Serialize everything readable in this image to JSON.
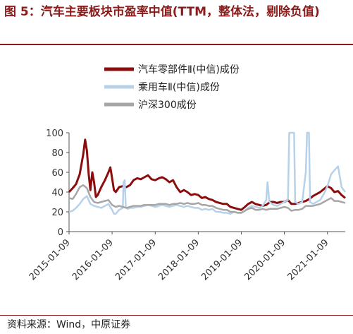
{
  "title": "图 5：汽车主要板块市盈率中值(TTM，整体法，剔除负值)",
  "source": "资料来源：Wind，中原证券",
  "chart_data": {
    "type": "line",
    "ylim": [
      0,
      100
    ],
    "yticks": [
      0,
      20,
      40,
      60,
      80,
      100
    ],
    "xlim": [
      "2015-01-09",
      "2021-06-09"
    ],
    "xticks": [
      "2015-01-09",
      "2016-01-09",
      "2017-01-09",
      "2018-01-09",
      "2019-01-09",
      "2020-01-09",
      "2021-01-09"
    ],
    "legend_position": "top-right",
    "grid": false,
    "series": [
      {
        "name": "汽车零部件Ⅱ(中信)成份",
        "color": "#8B0D0D",
        "points": [
          [
            "2015-01-09",
            40
          ],
          [
            "2015-02-09",
            44
          ],
          [
            "2015-03-09",
            48
          ],
          [
            "2015-04-09",
            58
          ],
          [
            "2015-05-09",
            78
          ],
          [
            "2015-05-25",
            93
          ],
          [
            "2015-06-09",
            82
          ],
          [
            "2015-06-25",
            58
          ],
          [
            "2015-07-09",
            42
          ],
          [
            "2015-07-25",
            60
          ],
          [
            "2015-08-09",
            50
          ],
          [
            "2015-08-25",
            35
          ],
          [
            "2015-09-09",
            37
          ],
          [
            "2015-10-09",
            45
          ],
          [
            "2015-11-09",
            52
          ],
          [
            "2015-12-09",
            60
          ],
          [
            "2015-12-25",
            65
          ],
          [
            "2016-01-09",
            54
          ],
          [
            "2016-01-25",
            42
          ],
          [
            "2016-02-09",
            40
          ],
          [
            "2016-03-09",
            45
          ],
          [
            "2016-04-09",
            46
          ],
          [
            "2016-05-09",
            45
          ],
          [
            "2016-06-09",
            47
          ],
          [
            "2016-07-09",
            52
          ],
          [
            "2016-08-09",
            54
          ],
          [
            "2016-09-09",
            53
          ],
          [
            "2016-10-09",
            55
          ],
          [
            "2016-11-09",
            57
          ],
          [
            "2016-12-09",
            53
          ],
          [
            "2017-01-09",
            52
          ],
          [
            "2017-02-09",
            54
          ],
          [
            "2017-03-09",
            55
          ],
          [
            "2017-04-09",
            53
          ],
          [
            "2017-05-09",
            50
          ],
          [
            "2017-06-09",
            52
          ],
          [
            "2017-07-09",
            45
          ],
          [
            "2017-08-09",
            40
          ],
          [
            "2017-09-09",
            42
          ],
          [
            "2017-10-09",
            40
          ],
          [
            "2017-11-09",
            37
          ],
          [
            "2017-12-09",
            38
          ],
          [
            "2018-01-09",
            37
          ],
          [
            "2018-02-09",
            34
          ],
          [
            "2018-03-09",
            35
          ],
          [
            "2018-04-09",
            33
          ],
          [
            "2018-05-09",
            32
          ],
          [
            "2018-06-09",
            30
          ],
          [
            "2018-07-09",
            29
          ],
          [
            "2018-08-09",
            28
          ],
          [
            "2018-09-09",
            28
          ],
          [
            "2018-10-09",
            25
          ],
          [
            "2018-11-09",
            24
          ],
          [
            "2018-12-09",
            23
          ],
          [
            "2019-01-09",
            22
          ],
          [
            "2019-02-09",
            25
          ],
          [
            "2019-03-09",
            28
          ],
          [
            "2019-04-09",
            30
          ],
          [
            "2019-05-09",
            28
          ],
          [
            "2019-06-09",
            27
          ],
          [
            "2019-07-09",
            26
          ],
          [
            "2019-08-09",
            27
          ],
          [
            "2019-09-09",
            30
          ],
          [
            "2019-10-09",
            30
          ],
          [
            "2019-11-09",
            29
          ],
          [
            "2019-12-09",
            30
          ],
          [
            "2020-01-09",
            30
          ],
          [
            "2020-02-09",
            32
          ],
          [
            "2020-03-09",
            28
          ],
          [
            "2020-04-09",
            28
          ],
          [
            "2020-05-09",
            29
          ],
          [
            "2020-06-09",
            30
          ],
          [
            "2020-07-09",
            31
          ],
          [
            "2020-08-09",
            33
          ],
          [
            "2020-09-09",
            36
          ],
          [
            "2020-10-09",
            38
          ],
          [
            "2020-11-09",
            40
          ],
          [
            "2020-12-09",
            43
          ],
          [
            "2021-01-09",
            46
          ],
          [
            "2021-02-09",
            44
          ],
          [
            "2021-03-09",
            40
          ],
          [
            "2021-04-09",
            41
          ],
          [
            "2021-05-09",
            37
          ],
          [
            "2021-06-09",
            34
          ]
        ]
      },
      {
        "name": "乘用车Ⅱ(中信)成份",
        "color": "#B7D2E8",
        "points": [
          [
            "2015-01-09",
            20
          ],
          [
            "2015-02-09",
            21
          ],
          [
            "2015-03-09",
            24
          ],
          [
            "2015-04-09",
            28
          ],
          [
            "2015-05-09",
            33
          ],
          [
            "2015-06-09",
            36
          ],
          [
            "2015-07-09",
            28
          ],
          [
            "2015-08-09",
            26
          ],
          [
            "2015-09-09",
            25
          ],
          [
            "2015-10-09",
            24
          ],
          [
            "2015-11-09",
            26
          ],
          [
            "2015-12-09",
            28
          ],
          [
            "2016-01-09",
            22
          ],
          [
            "2016-01-25",
            18
          ],
          [
            "2016-02-09",
            18
          ],
          [
            "2016-03-09",
            22
          ],
          [
            "2016-04-09",
            24
          ],
          [
            "2016-04-15",
            50
          ],
          [
            "2016-04-25",
            52
          ],
          [
            "2016-05-05",
            25
          ],
          [
            "2016-05-20",
            23
          ],
          [
            "2016-06-09",
            24
          ],
          [
            "2016-07-09",
            24
          ],
          [
            "2016-08-09",
            25
          ],
          [
            "2016-09-09",
            25
          ],
          [
            "2016-10-09",
            26
          ],
          [
            "2016-11-09",
            27
          ],
          [
            "2016-12-09",
            26
          ],
          [
            "2017-01-09",
            25
          ],
          [
            "2017-02-09",
            26
          ],
          [
            "2017-03-09",
            27
          ],
          [
            "2017-04-09",
            26
          ],
          [
            "2017-05-09",
            25
          ],
          [
            "2017-06-09",
            26
          ],
          [
            "2017-07-09",
            27
          ],
          [
            "2017-08-09",
            26
          ],
          [
            "2017-09-09",
            25
          ],
          [
            "2017-10-09",
            26
          ],
          [
            "2017-11-09",
            25
          ],
          [
            "2017-12-09",
            24
          ],
          [
            "2018-01-09",
            24
          ],
          [
            "2018-02-09",
            22
          ],
          [
            "2018-03-09",
            23
          ],
          [
            "2018-04-09",
            22
          ],
          [
            "2018-05-09",
            23
          ],
          [
            "2018-06-09",
            20
          ],
          [
            "2018-07-09",
            20
          ],
          [
            "2018-08-09",
            19
          ],
          [
            "2018-09-09",
            19
          ],
          [
            "2018-10-09",
            18
          ],
          [
            "2018-11-09",
            20
          ],
          [
            "2018-12-09",
            19
          ],
          [
            "2019-01-09",
            19
          ],
          [
            "2019-02-09",
            21
          ],
          [
            "2019-03-09",
            24
          ],
          [
            "2019-04-09",
            26
          ],
          [
            "2019-05-09",
            25
          ],
          [
            "2019-06-09",
            24
          ],
          [
            "2019-07-09",
            26
          ],
          [
            "2019-08-09",
            32
          ],
          [
            "2019-08-20",
            50
          ],
          [
            "2019-09-05",
            30
          ],
          [
            "2019-10-09",
            27
          ],
          [
            "2019-11-09",
            26
          ],
          [
            "2019-12-09",
            28
          ],
          [
            "2020-01-09",
            30
          ],
          [
            "2020-02-09",
            32
          ],
          [
            "2020-02-20",
            100
          ],
          [
            "2020-03-01",
            100
          ],
          [
            "2020-03-09",
            100
          ],
          [
            "2020-03-20",
            100
          ],
          [
            "2020-04-01",
            100
          ],
          [
            "2020-04-10",
            30
          ],
          [
            "2020-05-09",
            28
          ],
          [
            "2020-06-09",
            30
          ],
          [
            "2020-07-09",
            60
          ],
          [
            "2020-07-20",
            100
          ],
          [
            "2020-08-05",
            100
          ],
          [
            "2020-08-15",
            30
          ],
          [
            "2020-09-09",
            28
          ],
          [
            "2020-10-09",
            30
          ],
          [
            "2020-11-09",
            32
          ],
          [
            "2020-12-09",
            38
          ],
          [
            "2021-01-09",
            46
          ],
          [
            "2021-02-09",
            58
          ],
          [
            "2021-03-09",
            62
          ],
          [
            "2021-04-09",
            66
          ],
          [
            "2021-05-09",
            45
          ],
          [
            "2021-06-09",
            40
          ]
        ]
      },
      {
        "name": "沪深300成份",
        "color": "#A6A6A6",
        "points": [
          [
            "2015-01-09",
            34
          ],
          [
            "2015-02-09",
            33
          ],
          [
            "2015-03-09",
            38
          ],
          [
            "2015-04-09",
            45
          ],
          [
            "2015-05-09",
            47
          ],
          [
            "2015-06-09",
            44
          ],
          [
            "2015-07-09",
            35
          ],
          [
            "2015-08-09",
            30
          ],
          [
            "2015-09-09",
            29
          ],
          [
            "2015-10-09",
            30
          ],
          [
            "2015-11-09",
            31
          ],
          [
            "2015-12-09",
            32
          ],
          [
            "2016-01-09",
            27
          ],
          [
            "2016-02-09",
            25
          ],
          [
            "2016-03-09",
            26
          ],
          [
            "2016-04-09",
            25
          ],
          [
            "2016-05-09",
            24
          ],
          [
            "2016-06-09",
            25
          ],
          [
            "2016-07-09",
            26
          ],
          [
            "2016-08-09",
            26
          ],
          [
            "2016-09-09",
            26
          ],
          [
            "2016-10-09",
            27
          ],
          [
            "2016-11-09",
            27
          ],
          [
            "2016-12-09",
            27
          ],
          [
            "2017-01-09",
            27
          ],
          [
            "2017-02-09",
            28
          ],
          [
            "2017-03-09",
            28
          ],
          [
            "2017-04-09",
            28
          ],
          [
            "2017-05-09",
            27
          ],
          [
            "2017-06-09",
            28
          ],
          [
            "2017-07-09",
            28
          ],
          [
            "2017-08-09",
            29
          ],
          [
            "2017-09-09",
            28
          ],
          [
            "2017-10-09",
            29
          ],
          [
            "2017-11-09",
            28
          ],
          [
            "2017-12-09",
            28
          ],
          [
            "2018-01-09",
            29
          ],
          [
            "2018-02-09",
            27
          ],
          [
            "2018-03-09",
            27
          ],
          [
            "2018-04-09",
            26
          ],
          [
            "2018-05-09",
            26
          ],
          [
            "2018-06-09",
            24
          ],
          [
            "2018-07-09",
            23
          ],
          [
            "2018-08-09",
            22
          ],
          [
            "2018-09-09",
            22
          ],
          [
            "2018-10-09",
            20
          ],
          [
            "2018-11-09",
            20
          ],
          [
            "2018-12-09",
            19
          ],
          [
            "2019-01-09",
            19
          ],
          [
            "2019-02-09",
            21
          ],
          [
            "2019-03-09",
            23
          ],
          [
            "2019-04-09",
            24
          ],
          [
            "2019-05-09",
            22
          ],
          [
            "2019-06-09",
            22
          ],
          [
            "2019-07-09",
            23
          ],
          [
            "2019-08-09",
            22
          ],
          [
            "2019-09-09",
            23
          ],
          [
            "2019-10-09",
            23
          ],
          [
            "2019-11-09",
            23
          ],
          [
            "2019-12-09",
            24
          ],
          [
            "2020-01-09",
            25
          ],
          [
            "2020-02-09",
            24
          ],
          [
            "2020-03-09",
            21
          ],
          [
            "2020-04-09",
            22
          ],
          [
            "2020-05-09",
            22
          ],
          [
            "2020-06-09",
            23
          ],
          [
            "2020-07-09",
            26
          ],
          [
            "2020-08-09",
            26
          ],
          [
            "2020-09-09",
            26
          ],
          [
            "2020-10-09",
            27
          ],
          [
            "2020-11-09",
            28
          ],
          [
            "2020-12-09",
            30
          ],
          [
            "2021-01-09",
            32
          ],
          [
            "2021-02-09",
            34
          ],
          [
            "2021-03-09",
            31
          ],
          [
            "2021-04-09",
            31
          ],
          [
            "2021-05-09",
            30
          ],
          [
            "2021-06-09",
            29
          ]
        ]
      }
    ]
  }
}
